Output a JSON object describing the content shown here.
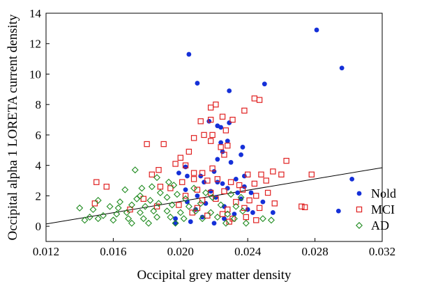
{
  "chart_data": {
    "type": "scatter",
    "title": "",
    "xlabel": "Occipital grey matter density",
    "ylabel": "Occipital alpha 1 LORETA current density",
    "xlim": [
      0.012,
      0.032
    ],
    "ylim": [
      -1,
      14
    ],
    "xticks": [
      0.012,
      0.016,
      0.02,
      0.024,
      0.028,
      0.032
    ],
    "xtick_labels": [
      "0.012",
      "0.016",
      "0.020",
      "0.024",
      "0.028",
      "0.032"
    ],
    "yticks": [
      0,
      2,
      4,
      6,
      8,
      10,
      12,
      14
    ],
    "ytick_labels": [
      "0",
      "2",
      "4",
      "6",
      "8",
      "10",
      "12",
      "14"
    ],
    "grid": false,
    "legend_position": "right",
    "series": [
      {
        "name": "Nold",
        "marker": "filled-circle",
        "color": "#1530d8",
        "points": [
          [
            0.0205,
            11.3
          ],
          [
            0.0281,
            12.9
          ],
          [
            0.0296,
            10.4
          ],
          [
            0.021,
            9.4
          ],
          [
            0.0229,
            8.9
          ],
          [
            0.025,
            9.35
          ],
          [
            0.0217,
            6.9
          ],
          [
            0.0222,
            6.6
          ],
          [
            0.0224,
            6.5
          ],
          [
            0.0229,
            6.8
          ],
          [
            0.0228,
            5.6
          ],
          [
            0.0224,
            5.5
          ],
          [
            0.0237,
            5.2
          ],
          [
            0.0225,
            4.9
          ],
          [
            0.0236,
            4.7
          ],
          [
            0.0222,
            4.4
          ],
          [
            0.023,
            4.2
          ],
          [
            0.0203,
            3.9
          ],
          [
            0.0199,
            3.5
          ],
          [
            0.0204,
            3.3
          ],
          [
            0.0212,
            3.3
          ],
          [
            0.022,
            3.6
          ],
          [
            0.0233,
            3.1
          ],
          [
            0.0238,
            3.3
          ],
          [
            0.0222,
            2.9
          ],
          [
            0.0302,
            3.1
          ],
          [
            0.0214,
            2.9
          ],
          [
            0.0225,
            2.8
          ],
          [
            0.0203,
            2.4
          ],
          [
            0.0218,
            2.3
          ],
          [
            0.0228,
            2.5
          ],
          [
            0.0238,
            2.6
          ],
          [
            0.0234,
            2.2
          ],
          [
            0.0242,
            2.2
          ],
          [
            0.021,
            2.0
          ],
          [
            0.0221,
            1.9
          ],
          [
            0.0236,
            1.8
          ],
          [
            0.0249,
            1.6
          ],
          [
            0.0204,
            1.6
          ],
          [
            0.0215,
            1.5
          ],
          [
            0.0226,
            1.3
          ],
          [
            0.024,
            1.1
          ],
          [
            0.0209,
            1.1
          ],
          [
            0.0232,
            0.8
          ],
          [
            0.0243,
            0.9
          ],
          [
            0.0255,
            0.9
          ],
          [
            0.0294,
            1.0
          ],
          [
            0.0197,
            0.5
          ],
          [
            0.0213,
            0.6
          ],
          [
            0.0226,
            0.5
          ],
          [
            0.0197,
            0.2
          ],
          [
            0.0206,
            0.3
          ],
          [
            0.022,
            0.2
          ]
        ]
      },
      {
        "name": "MCI",
        "marker": "open-square",
        "color": "#e02020",
        "points": [
          [
            0.0218,
            7.8
          ],
          [
            0.0221,
            8.0
          ],
          [
            0.0238,
            7.6
          ],
          [
            0.0244,
            8.4
          ],
          [
            0.0247,
            8.3
          ],
          [
            0.0212,
            6.9
          ],
          [
            0.0218,
            7.0
          ],
          [
            0.0225,
            7.2
          ],
          [
            0.0231,
            7.0
          ],
          [
            0.0214,
            6.0
          ],
          [
            0.0219,
            6.0
          ],
          [
            0.0227,
            6.3
          ],
          [
            0.0208,
            5.8
          ],
          [
            0.018,
            5.4
          ],
          [
            0.019,
            5.4
          ],
          [
            0.0205,
            4.9
          ],
          [
            0.0218,
            5.6
          ],
          [
            0.0224,
            5.2
          ],
          [
            0.0228,
            5.3
          ],
          [
            0.02,
            4.5
          ],
          [
            0.0226,
            4.7
          ],
          [
            0.0263,
            4.3
          ],
          [
            0.0197,
            4.1
          ],
          [
            0.0203,
            4.0
          ],
          [
            0.0219,
            3.8
          ],
          [
            0.0187,
            3.7
          ],
          [
            0.0183,
            3.4
          ],
          [
            0.0208,
            3.5
          ],
          [
            0.0213,
            3.5
          ],
          [
            0.024,
            3.4
          ],
          [
            0.0248,
            3.4
          ],
          [
            0.0255,
            3.6
          ],
          [
            0.026,
            3.4
          ],
          [
            0.0278,
            3.4
          ],
          [
            0.015,
            2.9
          ],
          [
            0.0156,
            2.6
          ],
          [
            0.0188,
            2.6
          ],
          [
            0.0201,
            2.9
          ],
          [
            0.0208,
            3.1
          ],
          [
            0.0216,
            3.0
          ],
          [
            0.0222,
            3.1
          ],
          [
            0.023,
            2.9
          ],
          [
            0.0235,
            2.7
          ],
          [
            0.0244,
            2.8
          ],
          [
            0.0251,
            3.0
          ],
          [
            0.0194,
            2.5
          ],
          [
            0.021,
            2.4
          ],
          [
            0.0218,
            2.2
          ],
          [
            0.0226,
            2.3
          ],
          [
            0.0237,
            2.4
          ],
          [
            0.0245,
            2.0
          ],
          [
            0.0252,
            2.2
          ],
          [
            0.0149,
            1.5
          ],
          [
            0.0178,
            1.8
          ],
          [
            0.0203,
            2.0
          ],
          [
            0.0213,
            1.7
          ],
          [
            0.0221,
            1.8
          ],
          [
            0.0233,
            1.6
          ],
          [
            0.0241,
            1.7
          ],
          [
            0.0256,
            1.5
          ],
          [
            0.017,
            1.1
          ],
          [
            0.0186,
            1.3
          ],
          [
            0.0199,
            1.4
          ],
          [
            0.021,
            1.2
          ],
          [
            0.0228,
            1.1
          ],
          [
            0.0238,
            1.2
          ],
          [
            0.0247,
            1.2
          ],
          [
            0.0272,
            1.3
          ],
          [
            0.0274,
            1.25
          ],
          [
            0.0207,
            0.9
          ],
          [
            0.0216,
            0.7
          ],
          [
            0.0225,
            0.8
          ],
          [
            0.0231,
            0.5
          ],
          [
            0.0239,
            0.6
          ],
          [
            0.0245,
            0.4
          ],
          [
            0.0229,
            0.3
          ]
        ]
      },
      {
        "name": "AD",
        "marker": "open-diamond",
        "color": "#1e8a1e",
        "points": [
          [
            0.0173,
            3.7
          ],
          [
            0.0186,
            3.2
          ],
          [
            0.0193,
            2.9
          ],
          [
            0.0167,
            2.4
          ],
          [
            0.0177,
            2.5
          ],
          [
            0.0183,
            2.6
          ],
          [
            0.0196,
            2.7
          ],
          [
            0.0208,
            2.5
          ],
          [
            0.0176,
            2.0
          ],
          [
            0.0188,
            2.2
          ],
          [
            0.0198,
            2.1
          ],
          [
            0.0215,
            2.2
          ],
          [
            0.023,
            2.1
          ],
          [
            0.0151,
            1.7
          ],
          [
            0.0164,
            1.6
          ],
          [
            0.0174,
            1.8
          ],
          [
            0.0182,
            1.7
          ],
          [
            0.0192,
            1.9
          ],
          [
            0.0203,
            1.8
          ],
          [
            0.0219,
            1.9
          ],
          [
            0.0236,
            1.9
          ],
          [
            0.014,
            1.2
          ],
          [
            0.0148,
            1.1
          ],
          [
            0.0158,
            1.3
          ],
          [
            0.0163,
            1.2
          ],
          [
            0.0171,
            1.4
          ],
          [
            0.0179,
            1.3
          ],
          [
            0.0187,
            1.5
          ],
          [
            0.0195,
            1.4
          ],
          [
            0.0205,
            1.3
          ],
          [
            0.0212,
            1.5
          ],
          [
            0.0224,
            1.4
          ],
          [
            0.0233,
            1.3
          ],
          [
            0.0146,
            0.6
          ],
          [
            0.0154,
            0.7
          ],
          [
            0.0162,
            0.8
          ],
          [
            0.0168,
            0.9
          ],
          [
            0.0176,
            0.9
          ],
          [
            0.0184,
            1.0
          ],
          [
            0.0192,
            1.0
          ],
          [
            0.02,
            0.9
          ],
          [
            0.0209,
            1.0
          ],
          [
            0.0218,
            0.9
          ],
          [
            0.0228,
            0.8
          ],
          [
            0.0237,
            1.0
          ],
          [
            0.0143,
            0.4
          ],
          [
            0.0151,
            0.5
          ],
          [
            0.016,
            0.4
          ],
          [
            0.0169,
            0.5
          ],
          [
            0.0178,
            0.5
          ],
          [
            0.0186,
            0.6
          ],
          [
            0.0194,
            0.6
          ],
          [
            0.0202,
            0.5
          ],
          [
            0.0213,
            0.5
          ],
          [
            0.0222,
            0.6
          ],
          [
            0.0232,
            0.5
          ],
          [
            0.0249,
            0.5
          ],
          [
            0.0254,
            0.4
          ],
          [
            0.0171,
            0.2
          ],
          [
            0.0181,
            0.2
          ],
          [
            0.0197,
            0.2
          ],
          [
            0.0227,
            0.2
          ],
          [
            0.0239,
            0.2
          ]
        ]
      }
    ],
    "regression_line": {
      "x": [
        0.012,
        0.032
      ],
      "y": [
        0.15,
        3.85
      ]
    }
  }
}
